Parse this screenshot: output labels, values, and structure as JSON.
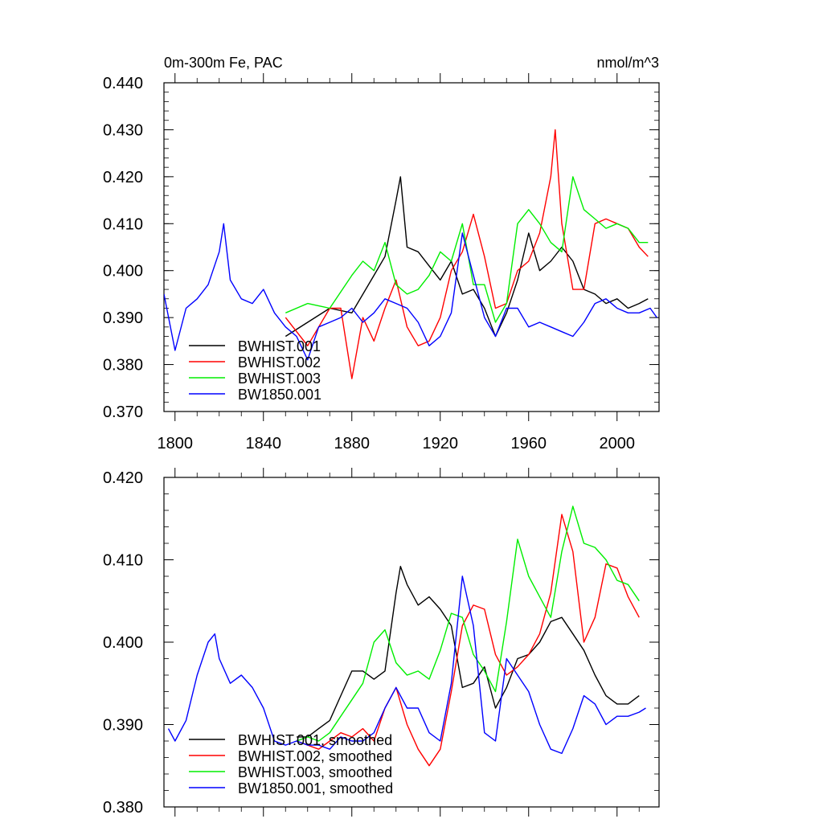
{
  "figure": {
    "title_left": "0m-300m Fe, PAC",
    "title_right": "nmol/m^3"
  },
  "chart_data": [
    {
      "type": "line",
      "title": "0m-300m Fe, PAC",
      "units": "nmol/m^3",
      "xlabel": "",
      "ylabel": "",
      "xlim": [
        1795,
        2019
      ],
      "ylim": [
        0.37,
        0.44
      ],
      "yticks": [
        "0.370",
        "0.380",
        "0.390",
        "0.400",
        "0.410",
        "0.420",
        "0.430",
        "0.440"
      ],
      "xticks": [
        "1800",
        "1840",
        "1880",
        "1920",
        "1960",
        "2000"
      ],
      "legend": "bottom-left",
      "series": [
        {
          "name": "BWHIST.001",
          "color": "#000000",
          "x": [
            1850,
            1860,
            1870,
            1880,
            1890,
            1895,
            1900,
            1902,
            1905,
            1910,
            1915,
            1920,
            1925,
            1930,
            1935,
            1940,
            1945,
            1950,
            1955,
            1960,
            1965,
            1970,
            1975,
            1980,
            1985,
            1990,
            1995,
            2000,
            2005,
            2010,
            2014
          ],
          "y": [
            0.386,
            0.389,
            0.392,
            0.391,
            0.399,
            0.403,
            0.415,
            0.42,
            0.405,
            0.404,
            0.401,
            0.398,
            0.402,
            0.395,
            0.396,
            0.392,
            0.386,
            0.391,
            0.398,
            0.408,
            0.4,
            0.402,
            0.405,
            0.402,
            0.396,
            0.395,
            0.393,
            0.394,
            0.392,
            0.393,
            0.394
          ]
        },
        {
          "name": "BWHIST.002",
          "color": "#ff0000",
          "x": [
            1850,
            1860,
            1870,
            1875,
            1880,
            1885,
            1890,
            1895,
            1900,
            1905,
            1910,
            1915,
            1920,
            1925,
            1930,
            1935,
            1940,
            1945,
            1950,
            1955,
            1960,
            1965,
            1970,
            1972,
            1975,
            1980,
            1985,
            1990,
            1995,
            2000,
            2005,
            2010,
            2014
          ],
          "y": [
            0.39,
            0.384,
            0.392,
            0.392,
            0.377,
            0.39,
            0.385,
            0.392,
            0.398,
            0.388,
            0.384,
            0.385,
            0.39,
            0.4,
            0.404,
            0.412,
            0.403,
            0.392,
            0.393,
            0.4,
            0.402,
            0.408,
            0.42,
            0.43,
            0.41,
            0.396,
            0.396,
            0.41,
            0.411,
            0.41,
            0.409,
            0.405,
            0.403
          ]
        },
        {
          "name": "BWHIST.003",
          "color": "#00ee00",
          "x": [
            1850,
            1860,
            1870,
            1880,
            1885,
            1890,
            1895,
            1900,
            1905,
            1910,
            1915,
            1920,
            1925,
            1930,
            1935,
            1940,
            1945,
            1950,
            1955,
            1960,
            1965,
            1970,
            1975,
            1980,
            1985,
            1990,
            1995,
            2000,
            2005,
            2010,
            2014
          ],
          "y": [
            0.391,
            0.393,
            0.392,
            0.399,
            0.402,
            0.4,
            0.406,
            0.397,
            0.395,
            0.396,
            0.399,
            0.404,
            0.402,
            0.41,
            0.397,
            0.397,
            0.389,
            0.393,
            0.41,
            0.413,
            0.41,
            0.406,
            0.404,
            0.42,
            0.413,
            0.411,
            0.409,
            0.41,
            0.409,
            0.406,
            0.406
          ]
        },
        {
          "name": "BW1850.001",
          "color": "#0000ff",
          "x": [
            1795,
            1800,
            1805,
            1810,
            1815,
            1820,
            1822,
            1825,
            1830,
            1835,
            1840,
            1845,
            1850,
            1855,
            1860,
            1865,
            1870,
            1875,
            1880,
            1885,
            1890,
            1895,
            1900,
            1905,
            1910,
            1915,
            1920,
            1925,
            1930,
            1935,
            1940,
            1945,
            1950,
            1955,
            1960,
            1965,
            1970,
            1975,
            1980,
            1985,
            1990,
            1995,
            2000,
            2005,
            2010,
            2015,
            2018
          ],
          "y": [
            0.395,
            0.383,
            0.392,
            0.394,
            0.397,
            0.404,
            0.41,
            0.398,
            0.394,
            0.393,
            0.396,
            0.391,
            0.388,
            0.386,
            0.381,
            0.388,
            0.389,
            0.39,
            0.392,
            0.389,
            0.391,
            0.394,
            0.393,
            0.392,
            0.389,
            0.384,
            0.386,
            0.391,
            0.408,
            0.399,
            0.39,
            0.386,
            0.392,
            0.392,
            0.388,
            0.389,
            0.388,
            0.387,
            0.386,
            0.389,
            0.393,
            0.394,
            0.392,
            0.391,
            0.391,
            0.392,
            0.39
          ]
        }
      ]
    },
    {
      "type": "line",
      "title": "",
      "xlabel": "",
      "ylabel": "",
      "xlim": [
        1795,
        2019
      ],
      "ylim": [
        0.38,
        0.42
      ],
      "yticks": [
        "0.380",
        "0.390",
        "0.400",
        "0.410",
        "0.420"
      ],
      "legend": "bottom-left",
      "series": [
        {
          "name": "BWHIST.001, smoothed",
          "color": "#000000",
          "x": [
            1855,
            1860,
            1865,
            1870,
            1875,
            1880,
            1885,
            1890,
            1895,
            1900,
            1902,
            1905,
            1910,
            1915,
            1920,
            1925,
            1930,
            1935,
            1940,
            1945,
            1950,
            1955,
            1960,
            1965,
            1970,
            1975,
            1980,
            1985,
            1990,
            1995,
            2000,
            2005,
            2010
          ],
          "y": [
            0.3885,
            0.3885,
            0.3895,
            0.3905,
            0.3935,
            0.3965,
            0.3965,
            0.3955,
            0.3965,
            0.406,
            0.4092,
            0.407,
            0.4045,
            0.4055,
            0.404,
            0.402,
            0.3945,
            0.395,
            0.397,
            0.392,
            0.3945,
            0.398,
            0.3985,
            0.4,
            0.4025,
            0.403,
            0.401,
            0.399,
            0.396,
            0.3935,
            0.3925,
            0.3925,
            0.3935
          ]
        },
        {
          "name": "BWHIST.002, smoothed",
          "color": "#ff0000",
          "x": [
            1855,
            1860,
            1865,
            1870,
            1875,
            1880,
            1885,
            1890,
            1895,
            1900,
            1905,
            1910,
            1915,
            1920,
            1925,
            1930,
            1935,
            1940,
            1945,
            1950,
            1955,
            1960,
            1965,
            1970,
            1975,
            1980,
            1985,
            1990,
            1995,
            2000,
            2005,
            2010
          ],
          "y": [
            0.388,
            0.3875,
            0.387,
            0.388,
            0.389,
            0.3885,
            0.3895,
            0.388,
            0.392,
            0.3945,
            0.39,
            0.387,
            0.385,
            0.387,
            0.394,
            0.402,
            0.4045,
            0.404,
            0.3985,
            0.396,
            0.397,
            0.3985,
            0.401,
            0.406,
            0.4155,
            0.411,
            0.4,
            0.403,
            0.4095,
            0.409,
            0.4055,
            0.403
          ]
        },
        {
          "name": "BWHIST.003, smoothed",
          "color": "#00ee00",
          "x": [
            1855,
            1860,
            1865,
            1870,
            1875,
            1880,
            1885,
            1890,
            1895,
            1900,
            1905,
            1910,
            1915,
            1920,
            1925,
            1930,
            1935,
            1940,
            1945,
            1950,
            1955,
            1960,
            1965,
            1970,
            1975,
            1980,
            1985,
            1990,
            1995,
            2000,
            2005,
            2010
          ],
          "y": [
            0.388,
            0.3885,
            0.388,
            0.389,
            0.391,
            0.393,
            0.395,
            0.4,
            0.4015,
            0.3975,
            0.396,
            0.3965,
            0.3955,
            0.399,
            0.4035,
            0.403,
            0.3985,
            0.3965,
            0.394,
            0.4025,
            0.4125,
            0.408,
            0.4055,
            0.403,
            0.411,
            0.4165,
            0.412,
            0.4115,
            0.41,
            0.4075,
            0.407,
            0.405
          ]
        },
        {
          "name": "BW1850.001, smoothed",
          "color": "#0000ff",
          "x": [
            1797,
            1800,
            1805,
            1810,
            1815,
            1818,
            1820,
            1825,
            1830,
            1835,
            1840,
            1845,
            1850,
            1855,
            1860,
            1865,
            1870,
            1875,
            1880,
            1885,
            1890,
            1895,
            1900,
            1905,
            1910,
            1915,
            1920,
            1925,
            1930,
            1935,
            1940,
            1945,
            1950,
            1955,
            1960,
            1965,
            1970,
            1975,
            1980,
            1985,
            1990,
            1995,
            2000,
            2005,
            2010,
            2013
          ],
          "y": [
            0.3895,
            0.388,
            0.3905,
            0.396,
            0.4,
            0.401,
            0.398,
            0.395,
            0.396,
            0.3945,
            0.392,
            0.388,
            0.3875,
            0.388,
            0.3875,
            0.3875,
            0.387,
            0.3885,
            0.388,
            0.388,
            0.389,
            0.392,
            0.3945,
            0.392,
            0.392,
            0.389,
            0.388,
            0.395,
            0.408,
            0.402,
            0.389,
            0.388,
            0.398,
            0.396,
            0.394,
            0.39,
            0.387,
            0.3865,
            0.3895,
            0.3935,
            0.3925,
            0.39,
            0.391,
            0.391,
            0.3915,
            0.392
          ]
        }
      ]
    }
  ]
}
